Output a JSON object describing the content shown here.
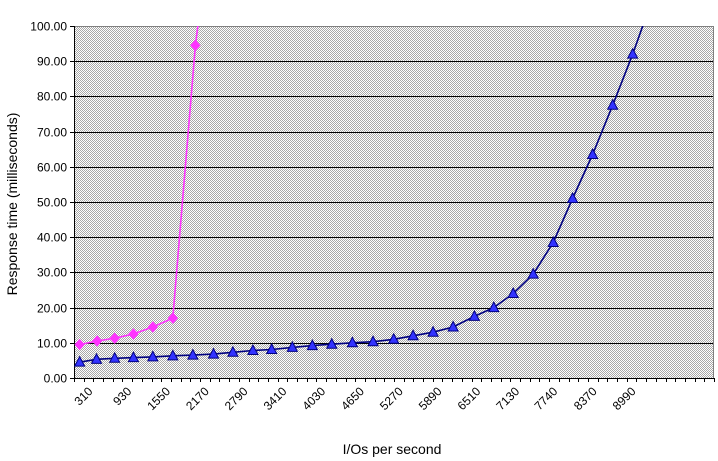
{
  "chart_data": {
    "type": "line",
    "title": "",
    "xlabel": "I/Os per second",
    "ylabel": "Response time (milliseconds)",
    "ylim": [
      0,
      100
    ],
    "x_range": [
      0,
      10230
    ],
    "y_ticks": [
      "0.00",
      "10.00",
      "20.00",
      "30.00",
      "40.00",
      "50.00",
      "60.00",
      "70.00",
      "80.00",
      "90.00",
      "100.00"
    ],
    "x_ticks": [
      310,
      930,
      1550,
      2170,
      2790,
      3410,
      4030,
      4650,
      5270,
      5890,
      6510,
      7130,
      7740,
      8370,
      8990
    ],
    "grid": true,
    "background": "#d8d8d8",
    "series": [
      {
        "name": "",
        "color": "#ff33ff",
        "marker": "diamond",
        "points": [
          {
            "x": 90,
            "y": 9.5
          },
          {
            "x": 370,
            "y": 10.5
          },
          {
            "x": 650,
            "y": 11.3
          },
          {
            "x": 950,
            "y": 12.5
          },
          {
            "x": 1260,
            "y": 14.5
          },
          {
            "x": 1580,
            "y": 17.0
          },
          {
            "x": 1940,
            "y": 94.5
          }
        ],
        "tail": {
          "x": 1990,
          "y": 101.5
        }
      },
      {
        "name": "",
        "color": "#000080",
        "marker": "triangle",
        "marker_fill": "#3333ff",
        "points": [
          {
            "x": 90,
            "y": 4.5
          },
          {
            "x": 360,
            "y": 5.3
          },
          {
            "x": 650,
            "y": 5.6
          },
          {
            "x": 950,
            "y": 5.8
          },
          {
            "x": 1260,
            "y": 6.0
          },
          {
            "x": 1580,
            "y": 6.3
          },
          {
            "x": 1900,
            "y": 6.5
          },
          {
            "x": 2230,
            "y": 6.8
          },
          {
            "x": 2540,
            "y": 7.3
          },
          {
            "x": 2860,
            "y": 7.8
          },
          {
            "x": 3160,
            "y": 8.1
          },
          {
            "x": 3490,
            "y": 8.7
          },
          {
            "x": 3810,
            "y": 9.2
          },
          {
            "x": 4120,
            "y": 9.6
          },
          {
            "x": 4450,
            "y": 10.0
          },
          {
            "x": 4780,
            "y": 10.3
          },
          {
            "x": 5110,
            "y": 11.0
          },
          {
            "x": 5420,
            "y": 12.0
          },
          {
            "x": 5740,
            "y": 13.0
          },
          {
            "x": 6060,
            "y": 14.5
          },
          {
            "x": 6400,
            "y": 17.5
          },
          {
            "x": 6710,
            "y": 20.0
          },
          {
            "x": 7020,
            "y": 24.0
          },
          {
            "x": 7340,
            "y": 29.5
          },
          {
            "x": 7660,
            "y": 38.5
          },
          {
            "x": 7970,
            "y": 51.0
          },
          {
            "x": 8290,
            "y": 63.5
          },
          {
            "x": 8610,
            "y": 77.5
          },
          {
            "x": 8930,
            "y": 92.0
          }
        ],
        "tail": {
          "x": 9120,
          "y": 101.5
        }
      }
    ]
  }
}
